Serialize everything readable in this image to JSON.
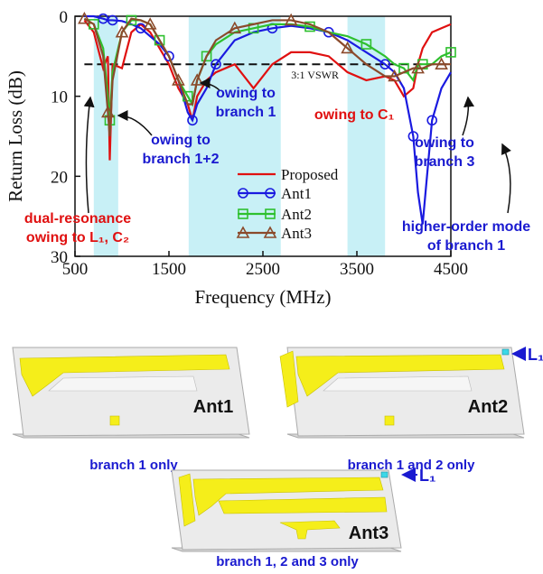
{
  "chart_data": {
    "type": "line",
    "x_label": "Frequency (MHz)",
    "y_label": "Return Loss (dB)",
    "xlim": [
      500,
      4500
    ],
    "ylim": [
      0,
      30
    ],
    "y_inverted": true,
    "xticks": [
      500,
      1500,
      2500,
      3500,
      4500
    ],
    "yticks": [
      0,
      10,
      20,
      30
    ],
    "grid": false,
    "legend": "lower center",
    "bands": [
      [
        700,
        960
      ],
      [
        1710,
        2690
      ],
      [
        3400,
        3800
      ]
    ],
    "band_color": "#c8f0f6",
    "reference_line": {
      "value": 6,
      "label": "3:1 VSWR"
    },
    "x": [
      600,
      700,
      800,
      850,
      870,
      900,
      1000,
      1100,
      1200,
      1300,
      1400,
      1500,
      1600,
      1700,
      1750,
      1800,
      1900,
      2000,
      2200,
      2400,
      2600,
      2800,
      3000,
      3200,
      3400,
      3600,
      3800,
      3900,
      4000,
      4100,
      4150,
      4200,
      4300,
      4400,
      4500
    ],
    "series": [
      {
        "name": "Proposed",
        "color": "#e01010",
        "marker": "none",
        "values": [
          0.5,
          2,
          6.5,
          5,
          18,
          6,
          6.5,
          2,
          1,
          2,
          4,
          6,
          9,
          11,
          13,
          10,
          8,
          7,
          6,
          9,
          6,
          4.5,
          4.5,
          5,
          7,
          8,
          7.5,
          8,
          10,
          9,
          6,
          4,
          2,
          1.5,
          1
        ]
      },
      {
        "name": "Ant1",
        "color": "#1a1ae0",
        "marker": "circle",
        "values": [
          0,
          0,
          0.3,
          0.5,
          0.5,
          0.5,
          0.6,
          1,
          1.5,
          2.5,
          3.5,
          5,
          8,
          12,
          13,
          11,
          9,
          6,
          3,
          2,
          1.5,
          1.2,
          1.5,
          2,
          3,
          4.5,
          6,
          7,
          9,
          15,
          22,
          26,
          13,
          9,
          7
        ]
      },
      {
        "name": "Ant2",
        "color": "#2ec02e",
        "marker": "square",
        "values": [
          0.3,
          1,
          4,
          10,
          13,
          7,
          2,
          0.5,
          0.5,
          1,
          3,
          5,
          8,
          10,
          11,
          8,
          5,
          3.5,
          2,
          1.5,
          1,
          1,
          1.3,
          2,
          2.5,
          3.5,
          5,
          6,
          6.5,
          8,
          6,
          6,
          6,
          5,
          4.5
        ]
      },
      {
        "name": "Ant3",
        "color": "#8b4a2b",
        "marker": "triangle",
        "values": [
          0.3,
          1,
          5,
          12,
          15,
          8,
          2,
          0.3,
          0.5,
          1,
          3,
          5,
          8,
          11,
          11,
          8,
          5,
          3,
          1.5,
          1,
          0.5,
          0.5,
          1,
          2,
          4,
          6,
          7.5,
          7.5,
          7,
          6.5,
          6.5,
          6.5,
          6,
          6,
          6
        ]
      }
    ],
    "annotations": [
      {
        "lines": [
          "owing to",
          "branch 1+2"
        ],
        "color": "#1a1ad0"
      },
      {
        "lines": [
          "owing to",
          "branch 1"
        ],
        "color": "#1a1ad0"
      },
      {
        "lines": [
          "owing to C₁"
        ],
        "color": "#e01010"
      },
      {
        "lines": [
          "owing to",
          "branch 3"
        ],
        "color": "#1a1ad0"
      },
      {
        "lines": [
          "dual-resonance",
          "owing to L₁, C₂"
        ],
        "color": "#e01010"
      },
      {
        "lines": [
          "higher-order mode",
          "of branch 1"
        ],
        "color": "#1a1ad0"
      }
    ]
  },
  "figures": [
    {
      "name": "Ant1",
      "caption": "branch 1 only"
    },
    {
      "name": "Ant2",
      "caption": "branch 1 and 2 only",
      "label": "L₁"
    },
    {
      "name": "Ant3",
      "caption": "branch 1, 2 and 3 only",
      "label": "L₁"
    }
  ]
}
